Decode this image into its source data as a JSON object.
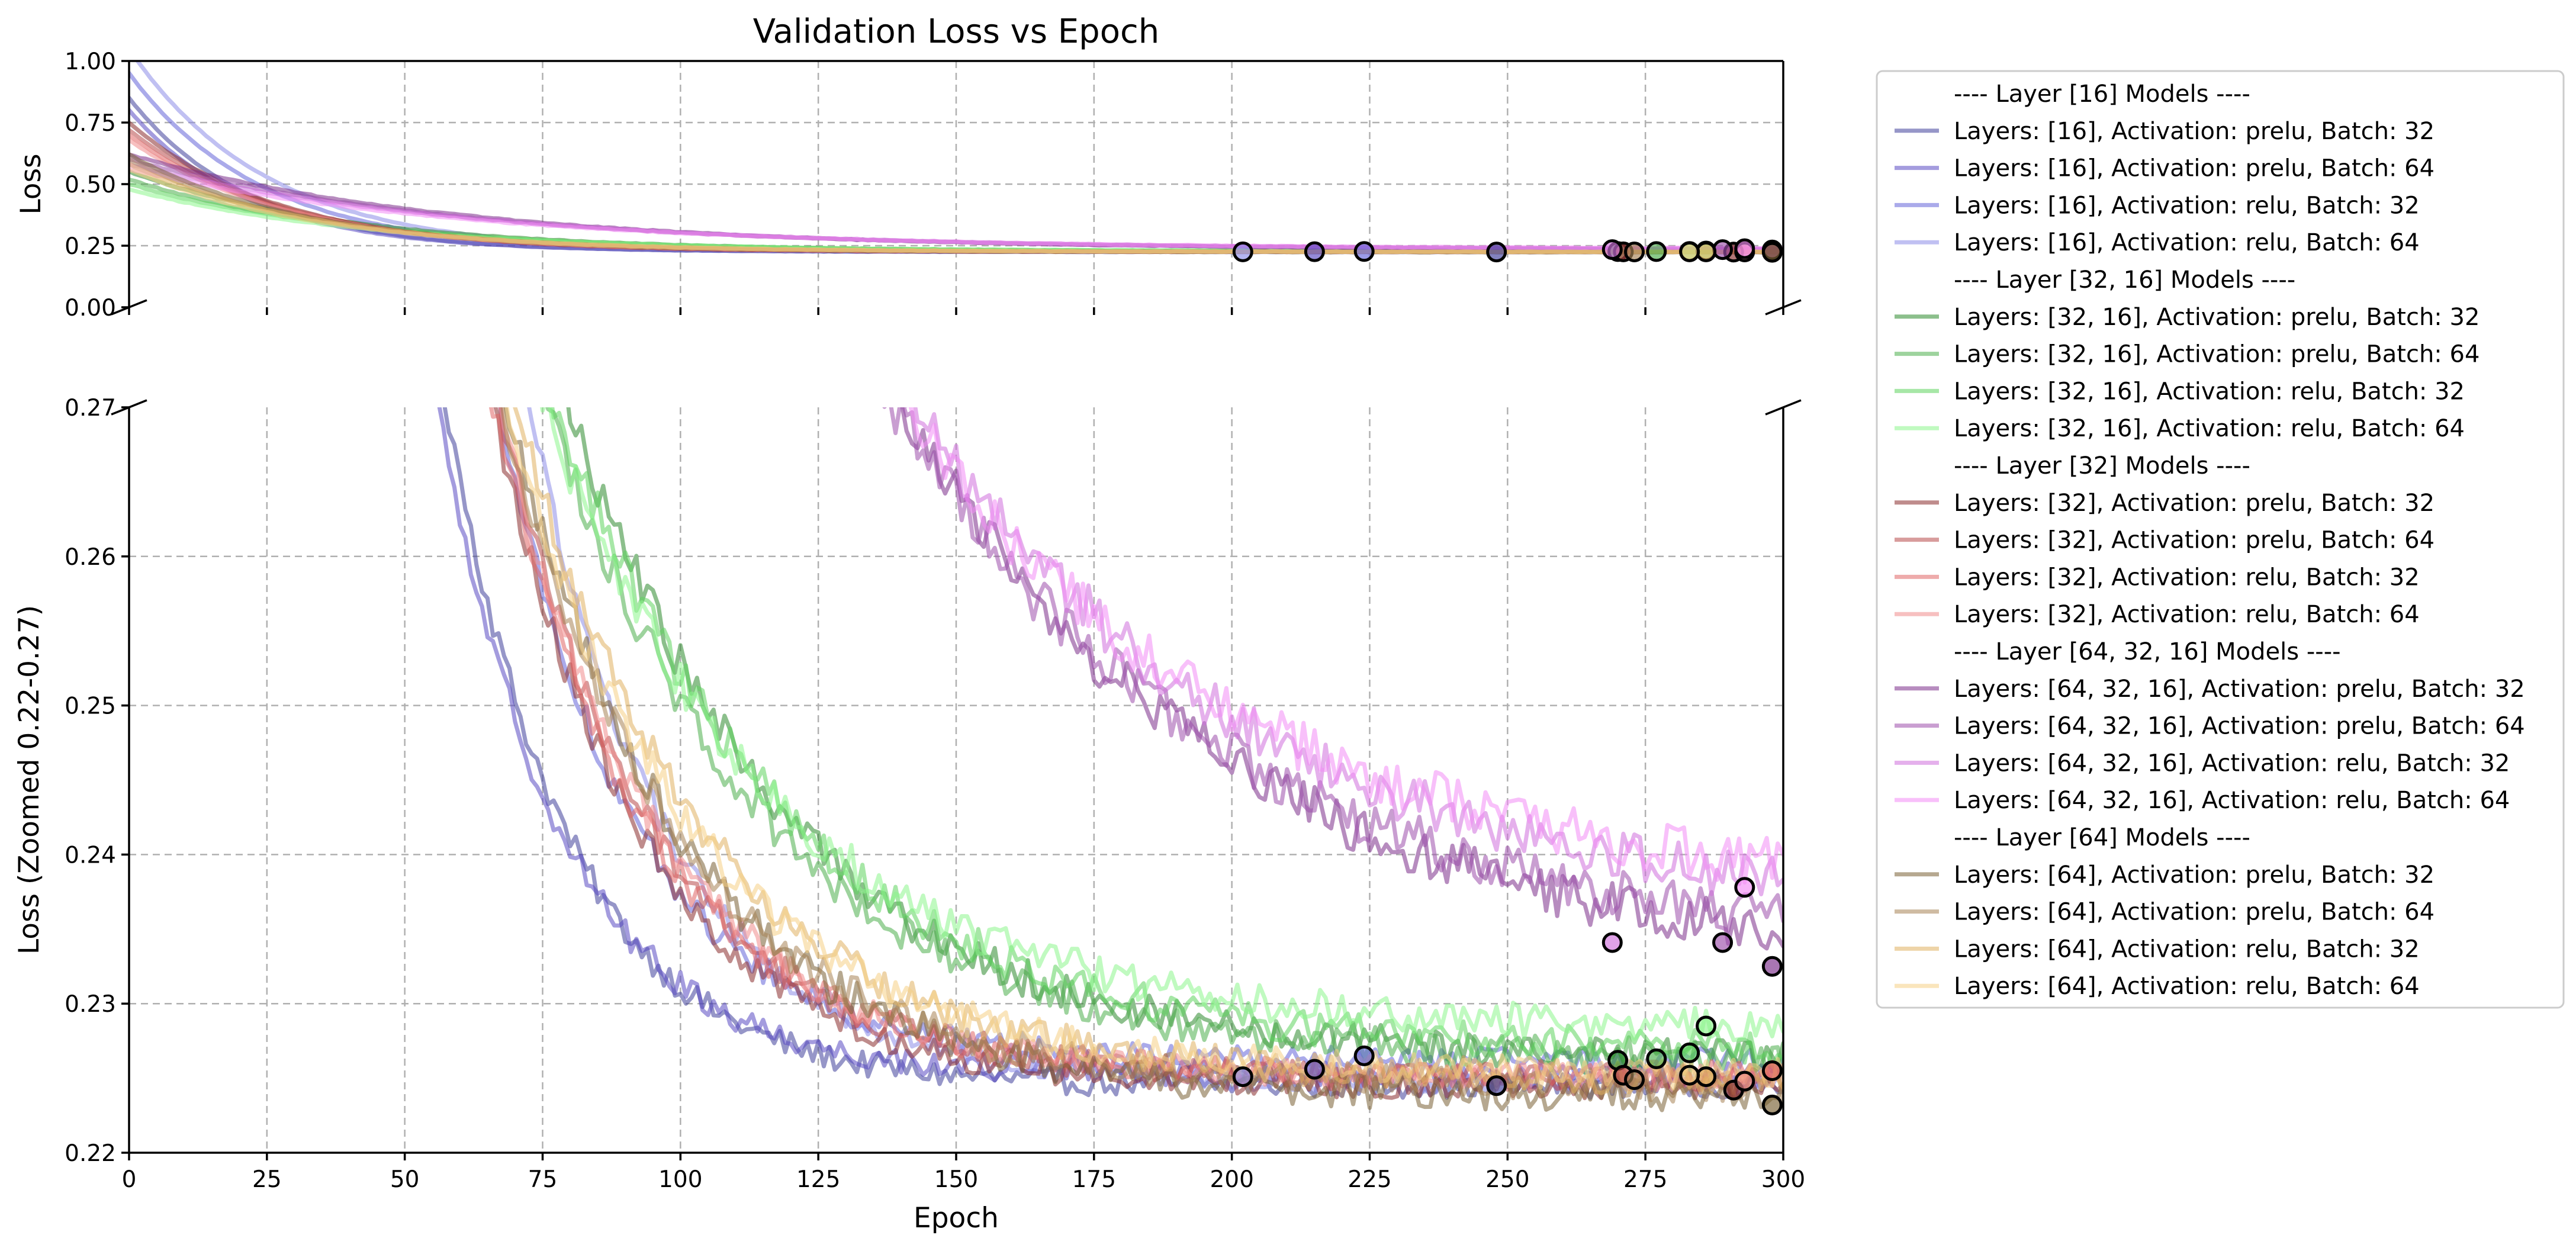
{
  "chart_data": {
    "type": "line",
    "title": "Validation Loss vs Epoch",
    "xlabel": "Epoch",
    "xlim": [
      0,
      300
    ],
    "xticks": [
      0,
      25,
      50,
      75,
      100,
      125,
      150,
      175,
      200,
      225,
      250,
      275,
      300
    ],
    "panels": {
      "top": {
        "ylabel": "Loss",
        "ylim": [
          0,
          1.0
        ],
        "yticks": [
          "0.00",
          "0.25",
          "0.50",
          "0.75",
          "1.00"
        ]
      },
      "bottom": {
        "ylabel": "Loss (Zoomed 0.22-0.27)",
        "ylim": [
          0.22,
          0.27
        ],
        "yticks": [
          "0.22",
          "0.23",
          "0.24",
          "0.25",
          "0.26",
          "0.27"
        ]
      }
    },
    "grid": true,
    "legend_position": "outside-right",
    "legend": [
      {
        "type": "header",
        "text": "---- Layer [16] Models ----"
      },
      {
        "type": "series",
        "text": "Layers: [16], Activation: prelu, Batch: 32",
        "color": "#3f3f9b"
      },
      {
        "type": "series",
        "text": "Layers: [16], Activation: prelu, Batch: 64",
        "color": "#5a4bc2"
      },
      {
        "type": "series",
        "text": "Layers: [16], Activation: relu, Batch: 32",
        "color": "#6565d8"
      },
      {
        "type": "series",
        "text": "Layers: [16], Activation: relu, Batch: 64",
        "color": "#8c8ce8"
      },
      {
        "type": "header",
        "text": "---- Layer [32, 16] Models ----"
      },
      {
        "type": "series",
        "text": "Layers: [32, 16], Activation: prelu, Batch: 32",
        "color": "#2e8b2e"
      },
      {
        "type": "series",
        "text": "Layers: [32, 16], Activation: prelu, Batch: 64",
        "color": "#4cae4c"
      },
      {
        "type": "series",
        "text": "Layers: [32, 16], Activation: relu, Batch: 32",
        "color": "#5fd35f"
      },
      {
        "type": "series",
        "text": "Layers: [32, 16], Activation: relu, Batch: 64",
        "color": "#8df58d"
      },
      {
        "type": "header",
        "text": "---- Layer [32] Models ----"
      },
      {
        "type": "series",
        "text": "Layers: [32], Activation: prelu, Batch: 32",
        "color": "#8b2e2e"
      },
      {
        "type": "series",
        "text": "Layers: [32], Activation: prelu, Batch: 64",
        "color": "#b84a4a"
      },
      {
        "type": "series",
        "text": "Layers: [32], Activation: relu, Batch: 32",
        "color": "#e06666"
      },
      {
        "type": "series",
        "text": "Layers: [32], Activation: relu, Batch: 64",
        "color": "#f08c8c"
      },
      {
        "type": "header",
        "text": "---- Layer [64, 32, 16] Models ----"
      },
      {
        "type": "series",
        "text": "Layers: [64, 32, 16], Activation: prelu, Batch: 32",
        "color": "#7b2d8b"
      },
      {
        "type": "series",
        "text": "Layers: [64, 32, 16], Activation: prelu, Batch: 64",
        "color": "#9c4fab"
      },
      {
        "type": "series",
        "text": "Layers: [64, 32, 16], Activation: relu, Batch: 32",
        "color": "#d070dc"
      },
      {
        "type": "series",
        "text": "Layers: [64, 32, 16], Activation: relu, Batch: 64",
        "color": "#f28cf5"
      },
      {
        "type": "header",
        "text": "---- Layer [64] Models ----"
      },
      {
        "type": "series",
        "text": "Layers: [64], Activation: prelu, Batch: 32",
        "color": "#7a6134"
      },
      {
        "type": "series",
        "text": "Layers: [64], Activation: prelu, Batch: 64",
        "color": "#a88456"
      },
      {
        "type": "series",
        "text": "Layers: [64], Activation: relu, Batch: 32",
        "color": "#e0b060"
      },
      {
        "type": "series",
        "text": "Layers: [64], Activation: relu, Batch: 64",
        "color": "#f5cf85"
      }
    ],
    "series": [
      {
        "name": "Layers: [16], Activation: prelu, Batch: 32",
        "color": "#3f3f9b",
        "start": 0.85,
        "end": 0.2245,
        "halflife": 22,
        "noise": 0.0008,
        "best_epoch": 248,
        "best_loss": 0.2245
      },
      {
        "name": "Layers: [16], Activation: prelu, Batch: 64",
        "color": "#5a4bc2",
        "start": 0.8,
        "end": 0.2252,
        "halflife": 22,
        "noise": 0.0008,
        "best_epoch": 215,
        "best_loss": 0.2256
      },
      {
        "name": "Layers: [16], Activation: relu, Batch: 32",
        "color": "#6565d8",
        "start": 0.95,
        "end": 0.2262,
        "halflife": 24,
        "noise": 0.0008,
        "best_epoch": 224,
        "best_loss": 0.2265
      },
      {
        "name": "Layers: [16], Activation: relu, Batch: 64",
        "color": "#8c8ce8",
        "start": 1.05,
        "end": 0.2248,
        "halflife": 25,
        "noise": 0.0008,
        "best_epoch": 202,
        "best_loss": 0.2251
      },
      {
        "name": "Layers: [32, 16], Activation: prelu, Batch: 32",
        "color": "#2e8b2e",
        "start": 0.55,
        "end": 0.2262,
        "halflife": 40,
        "noise": 0.0012,
        "best_epoch": 270,
        "best_loss": 0.2262
      },
      {
        "name": "Layers: [32, 16], Activation: prelu, Batch: 64",
        "color": "#4cae4c",
        "start": 0.52,
        "end": 0.2262,
        "halflife": 40,
        "noise": 0.0012,
        "best_epoch": 277,
        "best_loss": 0.2263
      },
      {
        "name": "Layers: [32, 16], Activation: relu, Batch: 32",
        "color": "#5fd35f",
        "start": 0.5,
        "end": 0.2268,
        "halflife": 42,
        "noise": 0.0012,
        "best_epoch": 283,
        "best_loss": 0.2267
      },
      {
        "name": "Layers: [32, 16], Activation: relu, Batch: 64",
        "color": "#8df58d",
        "start": 0.48,
        "end": 0.2282,
        "halflife": 42,
        "noise": 0.0012,
        "best_epoch": 286,
        "best_loss": 0.2285
      },
      {
        "name": "Layers: [32], Activation: prelu, Batch: 32",
        "color": "#8b2e2e",
        "start": 0.75,
        "end": 0.2245,
        "halflife": 27,
        "noise": 0.0009,
        "best_epoch": 291,
        "best_loss": 0.2242
      },
      {
        "name": "Layers: [32], Activation: prelu, Batch: 64",
        "color": "#b84a4a",
        "start": 0.72,
        "end": 0.225,
        "halflife": 28,
        "noise": 0.0009,
        "best_epoch": 271,
        "best_loss": 0.2252
      },
      {
        "name": "Layers: [32], Activation: relu, Batch: 32",
        "color": "#e06666",
        "start": 0.7,
        "end": 0.2252,
        "halflife": 28,
        "noise": 0.0009,
        "best_epoch": 298,
        "best_loss": 0.2255
      },
      {
        "name": "Layers: [32], Activation: relu, Batch: 64",
        "color": "#f08c8c",
        "start": 0.68,
        "end": 0.225,
        "halflife": 29,
        "noise": 0.0009,
        "best_epoch": 293,
        "best_loss": 0.2248
      },
      {
        "name": "Layers: [64, 32, 16], Activation: prelu, Batch: 32",
        "color": "#7b2d8b",
        "start": 0.62,
        "end": 0.2322,
        "halflife": 60,
        "noise": 0.0016,
        "best_epoch": 298,
        "best_loss": 0.2325
      },
      {
        "name": "Layers: [64, 32, 16], Activation: prelu, Batch: 64",
        "color": "#9c4fab",
        "start": 0.6,
        "end": 0.2335,
        "halflife": 60,
        "noise": 0.0016,
        "best_epoch": 289,
        "best_loss": 0.2341
      },
      {
        "name": "Layers: [64, 32, 16], Activation: relu, Batch: 32",
        "color": "#d070dc",
        "start": 0.58,
        "end": 0.2355,
        "halflife": 62,
        "noise": 0.0016,
        "best_epoch": 269,
        "best_loss": 0.2341
      },
      {
        "name": "Layers: [64, 32, 16], Activation: relu, Batch: 64",
        "color": "#f28cf5",
        "start": 0.56,
        "end": 0.2368,
        "halflife": 62,
        "noise": 0.0016,
        "best_epoch": 293,
        "best_loss": 0.2378
      },
      {
        "name": "Layers: [64], Activation: prelu, Batch: 32",
        "color": "#7a6134",
        "start": 0.62,
        "end": 0.2238,
        "halflife": 32,
        "noise": 0.0011,
        "best_epoch": 298,
        "best_loss": 0.2232
      },
      {
        "name": "Layers: [64], Activation: prelu, Batch: 64",
        "color": "#a88456",
        "start": 0.6,
        "end": 0.2245,
        "halflife": 32,
        "noise": 0.0011,
        "best_epoch": 273,
        "best_loss": 0.2249
      },
      {
        "name": "Layers: [64], Activation: relu, Batch: 32",
        "color": "#e0b060",
        "start": 0.58,
        "end": 0.225,
        "halflife": 34,
        "noise": 0.0011,
        "best_epoch": 286,
        "best_loss": 0.2251
      },
      {
        "name": "Layers: [64], Activation: relu, Batch: 64",
        "color": "#f5cf85",
        "start": 0.56,
        "end": 0.2252,
        "halflife": 34,
        "noise": 0.0011,
        "best_epoch": 283,
        "best_loss": 0.2252
      }
    ]
  }
}
